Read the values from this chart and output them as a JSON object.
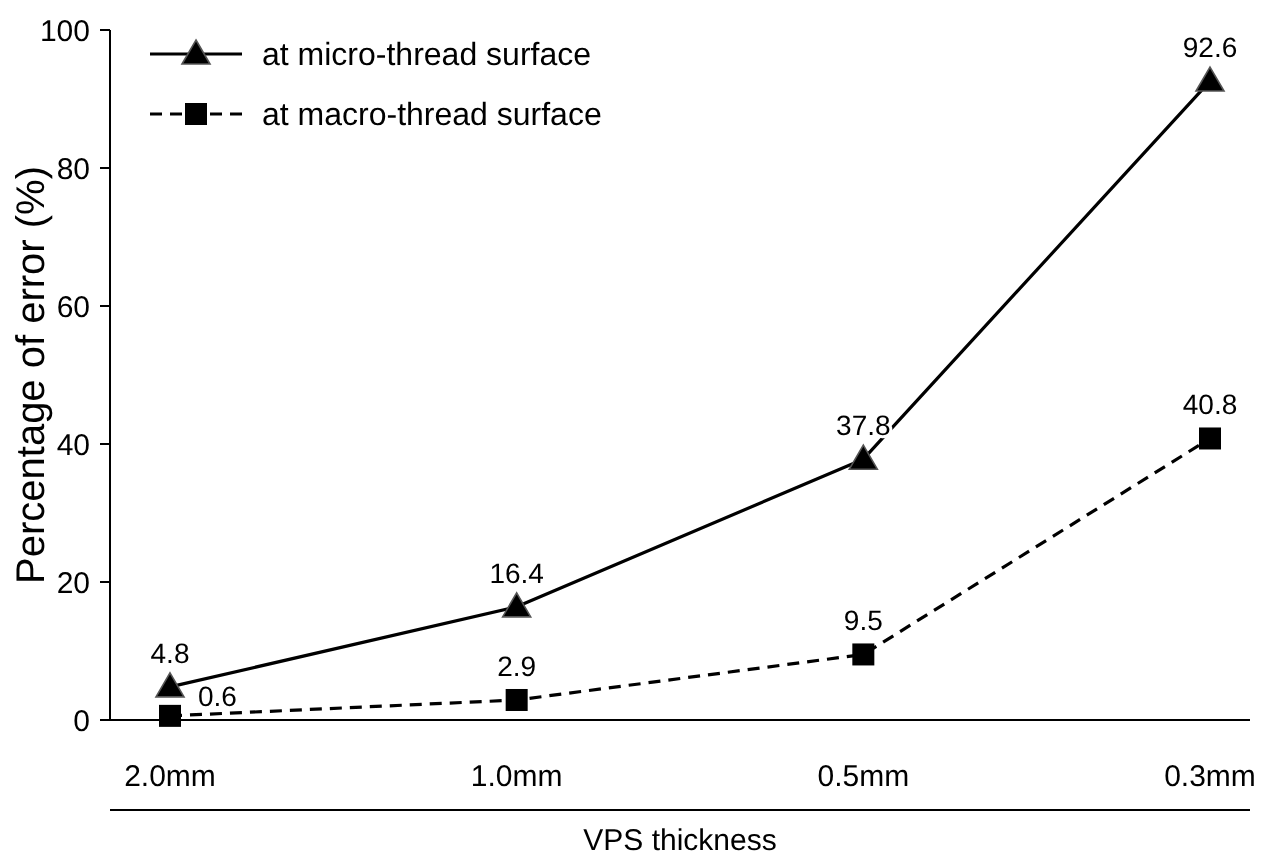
{
  "chart_data": {
    "type": "line",
    "xlabel": "VPS thickness",
    "ylabel": "Percentage of error (%)",
    "categories": [
      "2.0mm",
      "1.0mm",
      "0.5mm",
      "0.3mm"
    ],
    "series": [
      {
        "name": "at micro-thread surface",
        "color": "#000000",
        "values": [
          4.8,
          16.4,
          37.8,
          92.6
        ],
        "marker": "triangle",
        "line_style": "solid"
      },
      {
        "name": "at macro-thread surface",
        "color": "#000000",
        "values": [
          0.6,
          2.9,
          9.5,
          40.8
        ],
        "marker": "square",
        "line_style": "dashed"
      }
    ],
    "ylim": [
      0,
      100
    ],
    "yticks": [
      0,
      20,
      40,
      60,
      80,
      100
    ],
    "data_labels": true,
    "legend": "top left",
    "grid": false
  }
}
